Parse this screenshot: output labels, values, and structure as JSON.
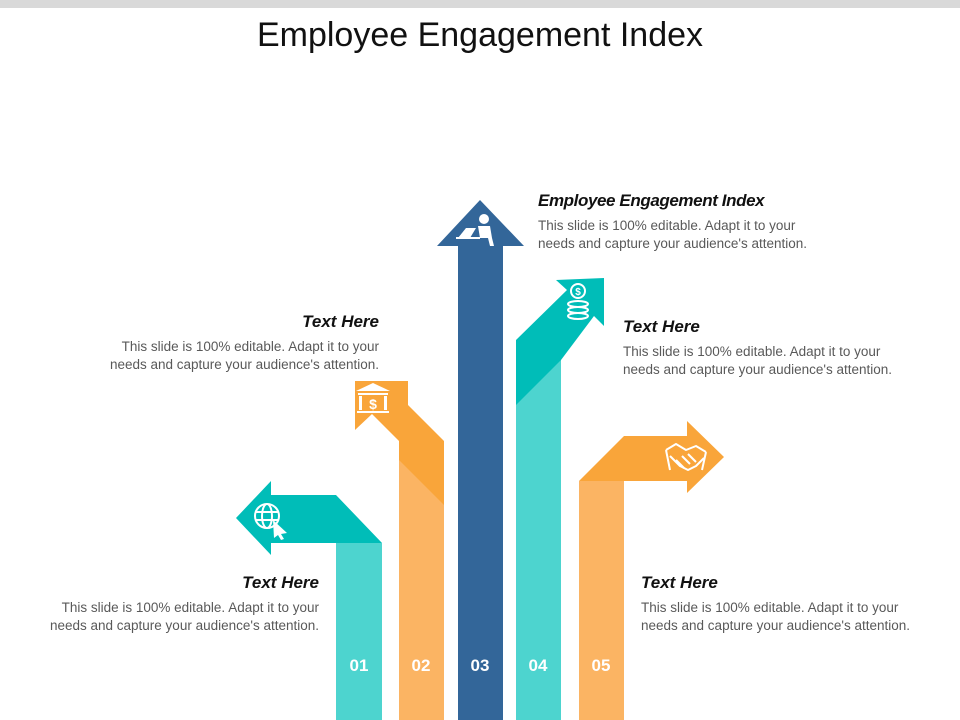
{
  "slide": {
    "title": "Employee Engagement Index"
  },
  "colors": {
    "teal_light": "#4DD4CF",
    "teal": "#00BDB8",
    "orange_light": "#FBB463",
    "orange": "#F9A53A",
    "navy": "#336699"
  },
  "arrows": [
    {
      "number": "01",
      "icon": "globe-cursor-icon"
    },
    {
      "number": "02",
      "icon": "bank-dollar-icon"
    },
    {
      "number": "03",
      "icon": "person-laptop-icon"
    },
    {
      "number": "04",
      "icon": "coin-stack-icon"
    },
    {
      "number": "05",
      "icon": "handshake-icon"
    }
  ],
  "text_blocks": [
    {
      "title": "Text Here",
      "body_line1": "This slide is 100% editable. Adapt it to your",
      "body_line2": "needs and capture your audience's attention."
    },
    {
      "title": "Text Here",
      "body_line1": "This slide is 100% editable. Adapt it to your",
      "body_line2": "needs and capture your audience's attention."
    },
    {
      "title": "Employee Engagement Index",
      "body_line1": "This slide is 100% editable. Adapt it to your",
      "body_line2": "needs and capture your audience's attention."
    },
    {
      "title": "Text Here",
      "body_line1": "This slide is 100% editable. Adapt it to your",
      "body_line2": "needs and capture your audience's attention."
    },
    {
      "title": "Text Here",
      "body_line1": "This slide is 100% editable. Adapt it to your",
      "body_line2": "needs and capture your audience's attention."
    }
  ]
}
